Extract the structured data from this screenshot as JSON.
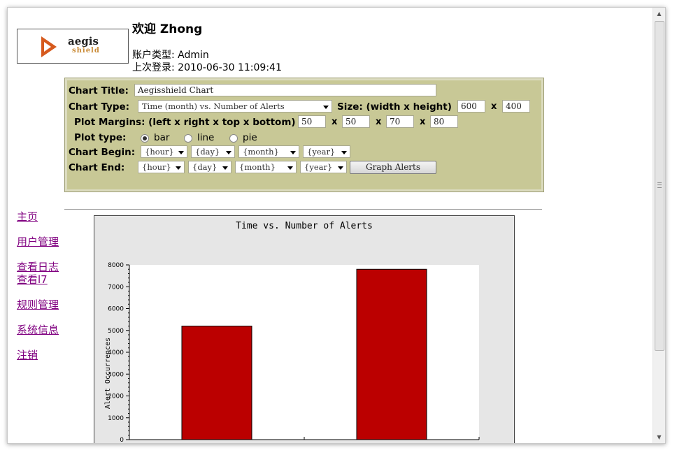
{
  "header": {
    "welcome": "欢迎 Zhong",
    "account_type": "账户类型: Admin",
    "last_login": "上次登录: 2010-06-30 11:09:41",
    "logo_text": "aegis",
    "logo_sub": "shield"
  },
  "form": {
    "chart_title_label": "Chart Title:",
    "chart_title_value": "Aegisshield Chart",
    "chart_type_label": "Chart Type:",
    "chart_type_value": "Time (month) vs. Number of Alerts",
    "size_label": "Size: (width x height)",
    "width": "600",
    "height": "400",
    "margins_label": "Plot Margins: (left x right x top x bottom)",
    "margin_left": "50",
    "margin_right": "50",
    "margin_top": "70",
    "margin_bottom": "80",
    "x": "x",
    "plot_type_label": "Plot type:",
    "plot_types": [
      "bar",
      "line",
      "pie"
    ],
    "plot_type_selected": "bar",
    "begin_label": "Chart Begin:",
    "end_label": "Chart End:",
    "hour": "{hour}",
    "day": "{day}",
    "month": "{month}",
    "year": "{year}",
    "graph_button": "Graph Alerts"
  },
  "nav": [
    "主页",
    "用户管理",
    "查看日志",
    "查看l7",
    "规则管理",
    "系统信息",
    "注销"
  ],
  "chart_data": {
    "type": "bar",
    "title": "Time vs. Number of Alerts",
    "ylabel": "Alert Occurrences",
    "xlabel": "",
    "categories": [
      "",
      ""
    ],
    "values": [
      5200,
      7800
    ],
    "ylim": [
      0,
      8000
    ],
    "yticks": [
      0,
      1000,
      2000,
      3000,
      4000,
      5000,
      6000,
      7000,
      8000
    ],
    "bar_color": "#bb0000",
    "plot_bg": "#ffffff",
    "outer_bg": "#e6e6e6"
  }
}
